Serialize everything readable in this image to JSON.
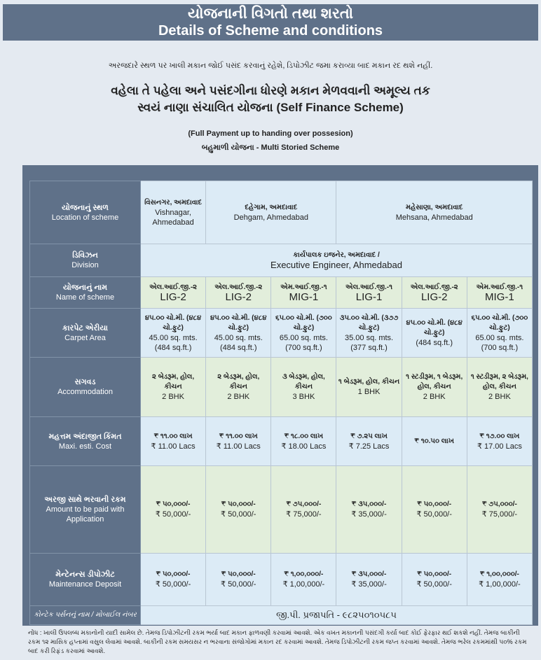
{
  "header": {
    "title_gu": "યોજનાની વિગતો તથા શરતો",
    "title_en": "Details of Scheme and conditions"
  },
  "notice": "અરજદારે સ્થળ પર ખાલી મકાન જોઈ પસંદ કરવાનું રહેશે, ડિપોઝીટ જમા કરાવ્યા બાદ મકાન રદ થશે નહીં.",
  "headline": {
    "line1": "વહેલા તે પહેલા અને પસંદગીના ધોરણે મકાન મેળવવાની અમૂલ્ય તક",
    "line2": "સ્વયં નાણા સંચાલિત યોજના (Self Finance Scheme)"
  },
  "subhead": {
    "line1": "(Full Payment up to handing over possesion)",
    "line2": "બહુમાળી યોજના - Multi Storied Scheme"
  },
  "table": {
    "labels": {
      "location": {
        "gu": "યોજનાનું સ્થળ",
        "en": "Location of scheme"
      },
      "division": {
        "gu": "ડિવિઝન",
        "en": "Division"
      },
      "name": {
        "gu": "યોજનાનું નામ",
        "en": "Name of scheme"
      },
      "carpet": {
        "gu": "કારપેટ એરીયા",
        "en": "Carpet Area"
      },
      "accommodation": {
        "gu": "સગવડ",
        "en": "Accommodation"
      },
      "cost": {
        "gu": "મહત્તમ અંદાજીત કિંમત",
        "en": "Maxi. esti. Cost"
      },
      "amount": {
        "gu": "અરજી સાથે ભરવાની રકમ",
        "en": "Amount to be paid with Application"
      },
      "maintenance": {
        "gu": "મેન્ટેનન્સ ડીપોઝીટ",
        "en": "Maintenance Deposit"
      },
      "contact": "કોન્ટેક પર્સનનું નામ / મોબાઈલ નંબર"
    },
    "locations": [
      {
        "gu": "વિસનગર, અમદાવાદ",
        "en": "Vishnagar, Ahmedabad"
      },
      {
        "gu": "દહેગામ, અમદાવાદ",
        "en": "Dehgam, Ahmedabad"
      },
      {
        "gu": "મહેસાણા, અમદાવાદ",
        "en": "Mehsana, Ahmedabad"
      }
    ],
    "division": {
      "gu": "કાર્યપાલક ઇજનેર, અમદાવાદ /",
      "en": "Executive Engineer, Ahmedabad"
    },
    "columns": [
      {
        "name_gu": "એલ.આઈ.જી.-૨",
        "name_en": "LIG-2",
        "carpet_gu": "૪૫.૦૦ ચો.મી. (૪૮૪ ચો.ફુટ)",
        "carpet_en": "45.00 sq. mts. (484 sq.ft.)",
        "acc_gu": "૨ બેડરૂમ, હોલ, કીચન",
        "acc_en": "2 BHK",
        "cost_gu": "₹ ૧૧.૦૦ લાખ",
        "cost_en": "₹ 11.00 Lacs",
        "amt_gu": "₹ ૫૦,૦૦૦/-",
        "amt_en": "₹ 50,000/-",
        "dep_gu": "₹ ૫૦,૦૦૦/-",
        "dep_en": "₹ 50,000/-"
      },
      {
        "name_gu": "એલ.આઈ.જી.-૨",
        "name_en": "LIG-2",
        "carpet_gu": "૪૫.૦૦ ચો.મી. (૪૮૪ ચો.ફુટ)",
        "carpet_en": "45.00 sq. mts. (484 sq.ft.)",
        "acc_gu": "૨ બેડરૂમ, હોલ, કીચન",
        "acc_en": "2 BHK",
        "cost_gu": "₹ ૧૧.૦૦ લાખ",
        "cost_en": "₹ 11.00 Lacs",
        "amt_gu": "₹ ૫૦,૦૦૦/-",
        "amt_en": "₹ 50,000/-",
        "dep_gu": "₹ ૫૦,૦૦૦/-",
        "dep_en": "₹ 50,000/-"
      },
      {
        "name_gu": "એમ.આઈ.જી.-૧",
        "name_en": "MIG-1",
        "carpet_gu": "૬૫.૦૦ ચો.મી. (૭૦૦ ચો.ફુટ)",
        "carpet_en": "65.00 sq. mts. (700 sq.ft.)",
        "acc_gu": "૩ બેડરૂમ, હોલ, કીચન",
        "acc_en": "3 BHK",
        "cost_gu": "₹ ૧૮.૦૦ લાખ",
        "cost_en": "₹ 18.00 Lacs",
        "amt_gu": "₹ ૭૫,૦૦૦/-",
        "amt_en": "₹ 75,000/-",
        "dep_gu": "₹ ૧,૦૦,૦૦૦/-",
        "dep_en": "₹ 1,00,000/-"
      },
      {
        "name_gu": "એલ.આઈ.જી.-૧",
        "name_en": "LIG-1",
        "carpet_gu": "૩૫.૦૦ ચો.મી. (૩૭૭ ચો.ફુટ)",
        "carpet_en": "35.00 sq. mts. (377 sq.ft.)",
        "acc_gu": "૧ બેડરૂમ, હોલ, કીચન",
        "acc_en": "1 BHK",
        "cost_gu": "₹ ૭.૨૫ લાખ",
        "cost_en": "₹ 7.25 Lacs",
        "amt_gu": "₹ ૩૫,૦૦૦/-",
        "amt_en": "₹ 35,000/-",
        "dep_gu": "₹ ૩૫,૦૦૦/-",
        "dep_en": "₹ 35,000/-"
      },
      {
        "name_gu": "એલ.આઈ.જી.-૨",
        "name_en": "LIG-2",
        "carpet_gu": "૪૫.૦૦ ચો.મી. (૪૮૪ ચો.ફુટ)",
        "carpet_en": "(484 sq.ft.)",
        "acc_gu": "૧ સ્ટડીરૂમ, ૧ બેડરૂમ, હોલ, કીચન",
        "acc_en": "2 BHK",
        "cost_gu": "₹ ૧૦.૫૦ લાખ",
        "cost_en": "",
        "amt_gu": "₹ ૫૦,૦૦૦/-",
        "amt_en": "₹ 50,000/-",
        "dep_gu": "₹ ૫૦,૦૦૦/-",
        "dep_en": "₹ 50,000/-"
      },
      {
        "name_gu": "એમ.આઈ.જી.-૧",
        "name_en": "MIG-1",
        "carpet_gu": "૬૫.૦૦ ચો.મી. (૭૦૦ ચો.ફુટ)",
        "carpet_en": "65.00 sq. mts. (700 sq.ft.)",
        "acc_gu": "૧ સ્ટડીરૂમ, ૨ બેડરૂમ, હોલ, કીચન",
        "acc_en": "2 BHK",
        "cost_gu": "₹ ૧૭.૦૦ લાખ",
        "cost_en": "₹ 17.00 Lacs",
        "amt_gu": "₹ ૭૫,૦૦૦/-",
        "amt_en": "₹ 75,000/-",
        "dep_gu": "₹ ૧,૦૦,૦૦૦/-",
        "dep_en": "₹ 1,00,000/-"
      }
    ],
    "contact": "જી.પી. પ્રજાપતિ - ૯૮૨૫૦૧૦૫૮૫"
  },
  "note": "નોંધ : ખાલી ઉપલબ્ધ મકાનોની યાદી સામેલ છે. તેમજ ડિપોઝીટની રકમ ભર્યા બાદ મકાન ફાળવણી કરવામાં આવશે. એક વખત મકાનની પસંદગી કર્યા બાદ કોઈ ફેરફાર થઈ શકશે નહીં. તેમજ બાકીની રકમ ૧૨ માસિક હપ્તામાં વસુલ લેવામાં આવશે. બાકીની રકમ સમયસર ન ભરવાના સંજોગોમાં મકાન રદ કરવામાં આવશે. તેમજ ડિપોઝીટની રકમ જપ્ત કરવામાં આવશે. તેમજ ભરેલ રકમમાંથી ૫૦% રકમ બાદ કરી રિફંડ કરવામાં આવશે."
}
